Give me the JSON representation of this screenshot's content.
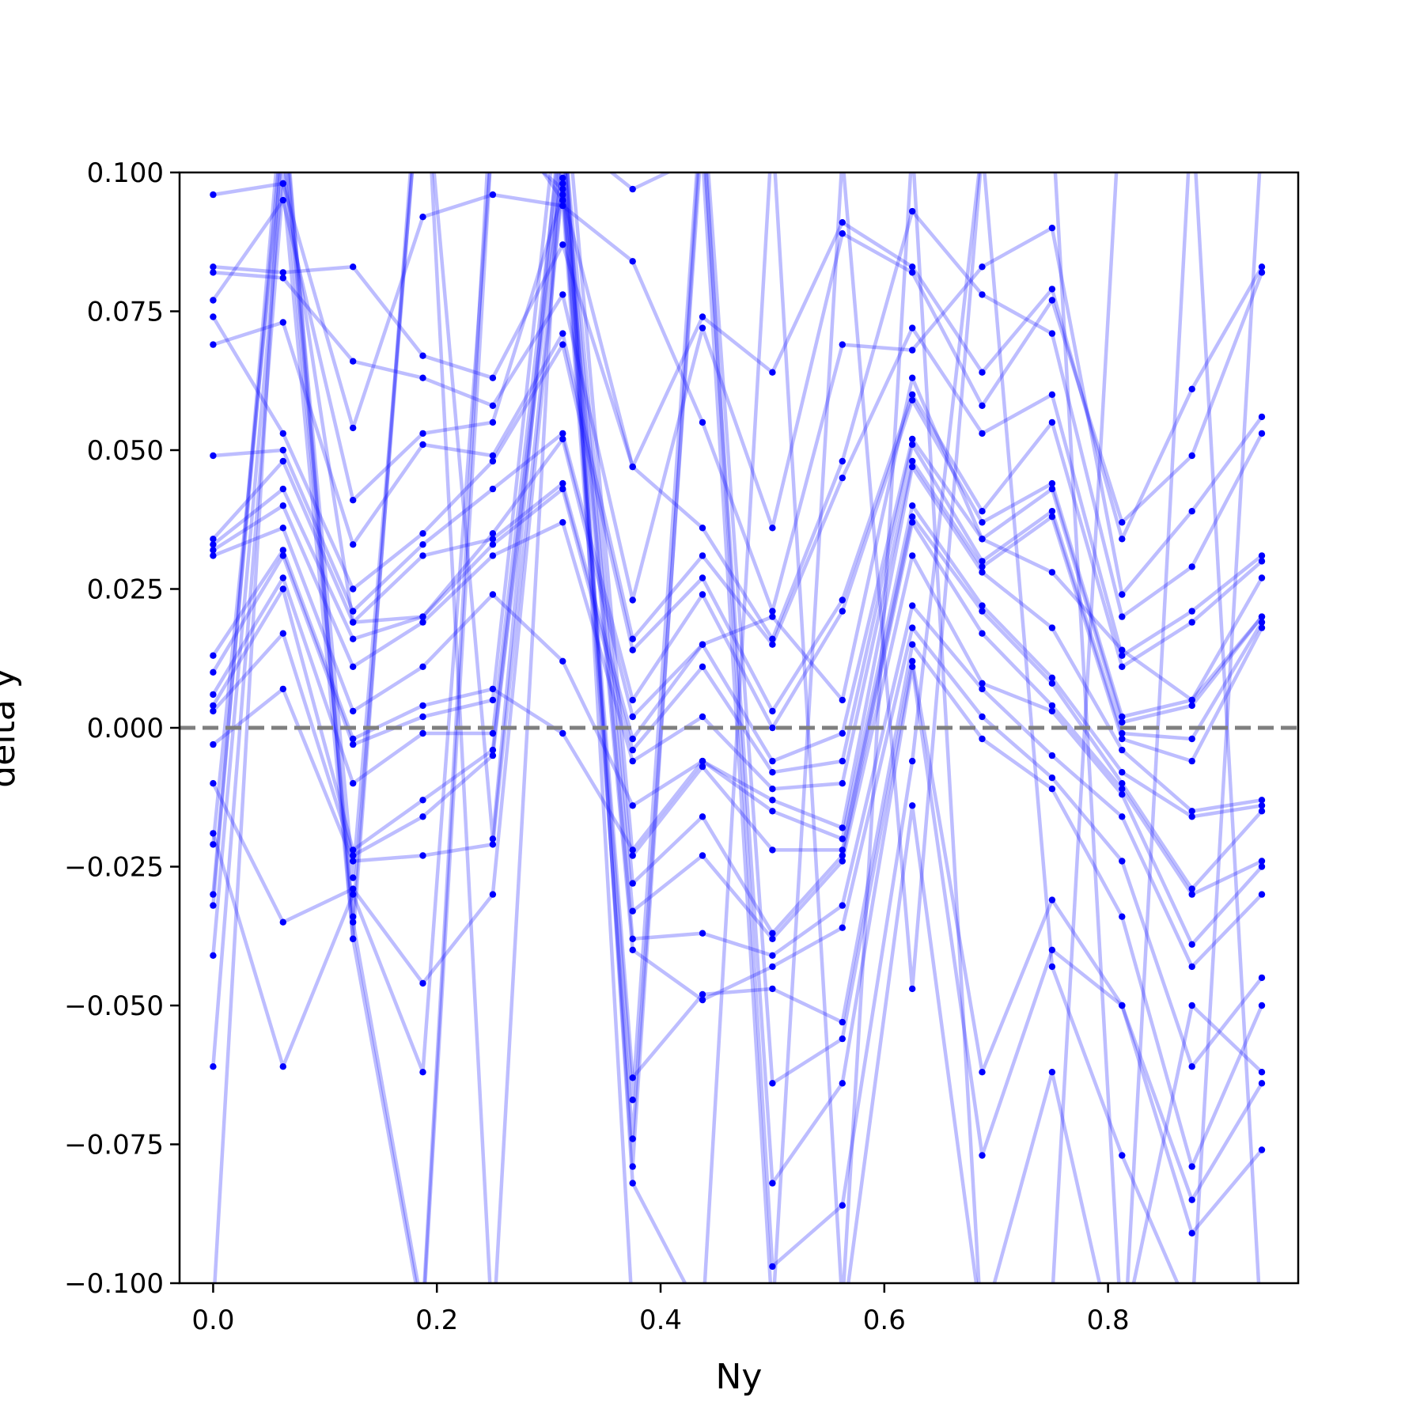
{
  "chart_data": {
    "type": "line",
    "title": "",
    "xlabel": "Ny",
    "ylabel": "delta y",
    "xlim": [
      -0.03,
      0.97
    ],
    "ylim": [
      -0.1,
      0.1
    ],
    "grid": false,
    "colors": {
      "series": "#0000ff",
      "reference": "#7f7f7f"
    },
    "reference_line": {
      "y": 0.0,
      "style": "dashed"
    },
    "x_ticks": [
      {
        "value": 0.0,
        "label": "0.0"
      },
      {
        "value": 0.2,
        "label": "0.2"
      },
      {
        "value": 0.4,
        "label": "0.4"
      },
      {
        "value": 0.6,
        "label": "0.6"
      },
      {
        "value": 0.8,
        "label": "0.8"
      }
    ],
    "y_ticks": [
      {
        "value": 0.1,
        "label": "0.100"
      },
      {
        "value": 0.075,
        "label": "0.075"
      },
      {
        "value": 0.05,
        "label": "0.050"
      },
      {
        "value": 0.025,
        "label": "0.025"
      },
      {
        "value": 0.0,
        "label": "0.000"
      },
      {
        "value": -0.025,
        "label": "−0.025"
      },
      {
        "value": -0.05,
        "label": "−0.050"
      },
      {
        "value": -0.075,
        "label": "−0.075"
      },
      {
        "value": -0.1,
        "label": "−0.100"
      }
    ],
    "x": [
      0.0,
      0.0625,
      0.125,
      0.1875,
      0.25,
      0.3125,
      0.375,
      0.4375,
      0.5,
      0.5625,
      0.625,
      0.6875,
      0.75,
      0.8125,
      0.875,
      0.9375
    ],
    "series": [
      {
        "values": [
          0.083,
          0.082,
          0.083,
          0.067,
          0.063,
          0.087,
          0.047,
          0.074,
          0.064,
          0.091,
          0.083,
          0.064,
          0.079,
          0.034,
          0.061,
          0.083
        ]
      },
      {
        "values": [
          0.082,
          0.081,
          0.066,
          0.063,
          0.058,
          0.078,
          0.023,
          0.072,
          0.036,
          0.089,
          0.082,
          0.058,
          0.077,
          0.037,
          0.049,
          0.082
        ]
      },
      {
        "values": [
          0.096,
          0.098,
          0.054,
          0.092,
          0.096,
          0.094,
          0.084,
          0.055,
          0.021,
          0.069,
          0.068,
          0.083,
          0.09,
          0.024,
          0.039,
          0.056
        ]
      },
      {
        "values": [
          0.077,
          0.095,
          0.041,
          0.053,
          0.055,
          0.096,
          0.047,
          0.036,
          0.016,
          0.048,
          0.093,
          0.078,
          0.071,
          0.02,
          0.029,
          0.053
        ]
      },
      {
        "values": [
          0.069,
          0.073,
          0.033,
          0.051,
          0.049,
          0.071,
          0.016,
          0.031,
          0.015,
          0.045,
          0.072,
          0.053,
          0.06,
          0.013,
          0.021,
          0.031
        ]
      },
      {
        "values": [
          0.074,
          0.053,
          0.025,
          0.035,
          0.048,
          0.069,
          0.014,
          0.027,
          0.003,
          0.023,
          0.06,
          0.039,
          0.055,
          0.011,
          0.019,
          0.03
        ]
      },
      {
        "values": [
          0.049,
          0.05,
          0.021,
          0.033,
          0.043,
          0.053,
          0.005,
          0.024,
          0.0,
          0.021,
          0.059,
          0.037,
          0.044,
          0.002,
          0.005,
          0.027
        ]
      },
      {
        "values": [
          0.034,
          0.048,
          0.019,
          0.031,
          0.034,
          0.044,
          -0.002,
          0.015,
          -0.006,
          -0.001,
          0.052,
          0.034,
          0.043,
          0.001,
          0.004,
          0.02
        ]
      },
      {
        "values": [
          0.033,
          0.043,
          0.016,
          0.02,
          0.033,
          0.043,
          -0.004,
          0.011,
          -0.008,
          -0.006,
          0.051,
          0.03,
          0.039,
          -0.001,
          -0.002,
          0.019
        ]
      },
      {
        "values": [
          0.032,
          0.04,
          0.011,
          0.019,
          0.031,
          0.037,
          -0.006,
          0.002,
          -0.011,
          -0.01,
          0.048,
          0.029,
          0.038,
          -0.002,
          -0.006,
          0.018
        ]
      },
      {
        "values": [
          0.031,
          0.036,
          0.003,
          0.011,
          0.024,
          0.012,
          -0.014,
          -0.006,
          -0.013,
          -0.018,
          0.047,
          0.028,
          0.018,
          -0.004,
          -0.015,
          -0.013
        ]
      },
      {
        "values": [
          0.013,
          0.032,
          -0.002,
          0.004,
          0.007,
          -0.001,
          -0.022,
          -0.006,
          -0.015,
          -0.02,
          0.04,
          0.022,
          0.009,
          -0.008,
          -0.016,
          -0.014
        ]
      },
      {
        "values": [
          0.01,
          0.031,
          -0.003,
          0.002,
          0.005,
          0.12,
          -0.023,
          -0.007,
          -0.022,
          -0.022,
          0.038,
          0.021,
          0.008,
          -0.01,
          -0.029,
          -0.015
        ]
      },
      {
        "values": [
          0.006,
          0.027,
          -0.01,
          -0.001,
          -0.001,
          0.11,
          -0.028,
          -0.016,
          -0.037,
          -0.023,
          0.037,
          0.017,
          0.004,
          -0.011,
          -0.03,
          -0.024
        ]
      },
      {
        "values": [
          0.004,
          0.025,
          -0.022,
          -0.013,
          -0.004,
          0.105,
          -0.033,
          -0.023,
          -0.038,
          -0.024,
          0.031,
          0.008,
          0.003,
          -0.012,
          -0.039,
          -0.025
        ]
      },
      {
        "values": [
          0.003,
          0.017,
          -0.023,
          -0.016,
          -0.005,
          0.102,
          -0.038,
          -0.037,
          -0.041,
          -0.032,
          0.022,
          0.007,
          -0.005,
          -0.016,
          -0.043,
          -0.03
        ]
      },
      {
        "values": [
          -0.003,
          0.007,
          -0.024,
          -0.023,
          -0.021,
          0.099,
          -0.04,
          -0.049,
          -0.043,
          -0.036,
          0.018,
          0.002,
          -0.009,
          -0.024,
          -0.061,
          -0.045
        ]
      },
      {
        "values": [
          -0.01,
          -0.035,
          -0.029,
          -0.046,
          -0.03,
          0.098,
          -0.063,
          -0.048,
          -0.047,
          -0.053,
          0.015,
          -0.002,
          -0.011,
          -0.034,
          -0.079,
          -0.05
        ]
      },
      {
        "values": [
          -0.019,
          -0.061,
          -0.03,
          -0.062,
          0.108,
          0.097,
          -0.067,
          0.115,
          -0.064,
          -0.056,
          0.012,
          -0.062,
          -0.031,
          -0.05,
          -0.085,
          -0.064
        ]
      },
      {
        "values": [
          -0.021,
          0.105,
          -0.034,
          0.125,
          0.113,
          0.095,
          -0.074,
          0.108,
          -0.082,
          -0.064,
          0.011,
          -0.077,
          -0.04,
          -0.05,
          -0.091,
          -0.076
        ]
      },
      {
        "values": [
          -0.03,
          0.11,
          -0.035,
          -0.105,
          0.118,
          0.107,
          -0.079,
          0.112,
          -0.097,
          -0.086,
          -0.006,
          0.105,
          -0.043,
          -0.077,
          -0.106,
          0.107
        ]
      },
      {
        "values": [
          -0.032,
          0.115,
          -0.038,
          0.13,
          -0.11,
          0.113,
          -0.082,
          -0.106,
          -0.112,
          -0.108,
          -0.014,
          -0.108,
          -0.062,
          -0.118,
          0.112,
          -0.11
        ]
      },
      {
        "values": [
          -0.041,
          0.101,
          0.019,
          0.02,
          0.035,
          0.052,
          0.002,
          0.015,
          0.02,
          0.005,
          0.063,
          0.034,
          0.028,
          0.014,
          0.005,
          0.02
        ]
      },
      {
        "values": [
          -0.061,
          0.098,
          -0.038,
          -0.107,
          0.109,
          0.107,
          0.097,
          0.103,
          -0.106,
          0.103,
          -0.047,
          0.104,
          0.11,
          -0.11,
          -0.05,
          -0.062
        ]
      },
      {
        "values": [
          -0.105,
          0.112,
          -0.027,
          0.123,
          -0.02,
          0.114,
          -0.106,
          -0.107,
          0.108,
          -0.104,
          0.105,
          -0.11,
          -0.103,
          0.118,
          0.121,
          0.104
        ]
      }
    ]
  }
}
